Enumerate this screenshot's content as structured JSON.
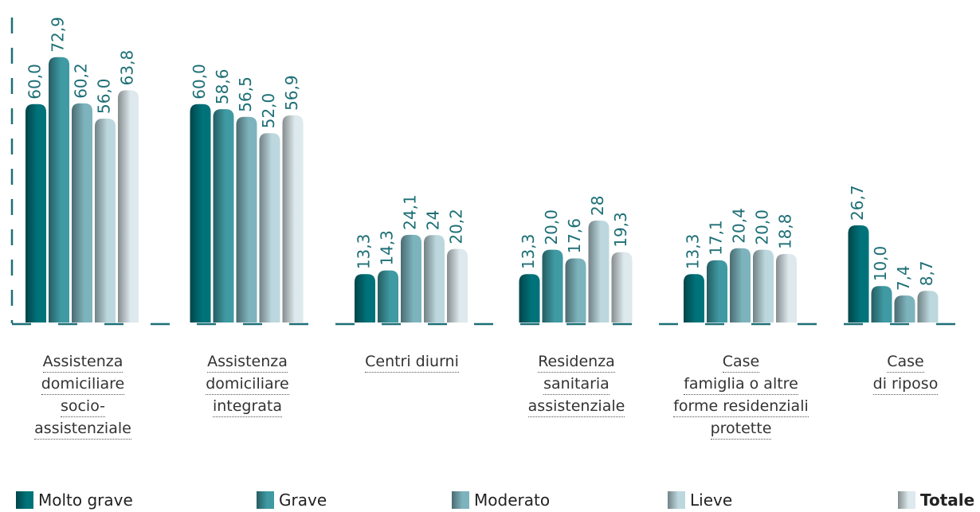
{
  "chart_data": {
    "type": "bar",
    "categories": [
      "Assistenza\ndomiciliare\nsocio-\nassistenziale",
      "Assistenza\ndomiciliare\nintegrata",
      "Centri diurni",
      "Residenza\nsanitaria\nassistenziale",
      "Case\nfamiglia o altre\nforme residenziali\nprotette",
      "Case\ndi riposo"
    ],
    "ylim": [
      0,
      84
    ],
    "series": [
      {
        "name": "Molto grave",
        "color": "#00737a",
        "values": [
          60.0,
          60.0,
          13.3,
          13.3,
          13.3,
          26.7
        ],
        "value_labels": [
          "60,0",
          "60,0",
          "13,3",
          "13,3",
          "13,3",
          "26,7"
        ]
      },
      {
        "name": "Grave",
        "color": "#3f9aa3",
        "values": [
          72.9,
          58.6,
          14.3,
          20.0,
          17.1,
          10.0
        ],
        "value_labels": [
          "72,9",
          "58,6",
          "14,3",
          "20,0",
          "17,1",
          "10,0"
        ]
      },
      {
        "name": "Moderato",
        "color": "#7db3bc",
        "values": [
          60.2,
          56.5,
          24.1,
          17.6,
          20.4,
          7.4
        ],
        "value_labels": [
          "60,2",
          "56,5",
          "24,1",
          "17,6",
          "20,4",
          "7,4"
        ]
      },
      {
        "name": "Lieve",
        "color": "#bcd8de",
        "values": [
          56.0,
          52.0,
          24,
          28,
          20.0,
          8.7
        ],
        "value_labels": [
          "56,0",
          "52,0",
          "24",
          "28",
          "20,0",
          "8,7"
        ]
      },
      {
        "name": "Totale",
        "color": "#dde9ed",
        "values": [
          63.8,
          56.9,
          20.2,
          19.3,
          18.8,
          null
        ],
        "value_labels": [
          "63,8",
          "56,9",
          "20,2",
          "19,3",
          "18,8",
          null
        ]
      }
    ]
  }
}
